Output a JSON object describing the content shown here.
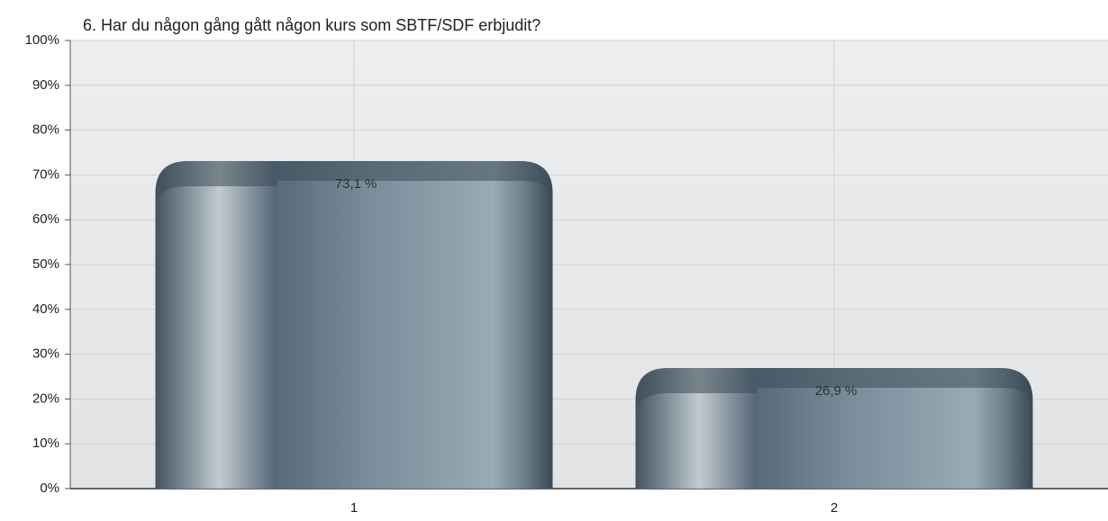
{
  "chart_data": {
    "type": "bar",
    "title": "6. Har du någon gång gått någon kurs som SBTF/SDF erbjudit?",
    "categories": [
      "1",
      "2"
    ],
    "values": [
      73.1,
      26.9
    ],
    "value_labels": [
      "73,1 %",
      "26,9 %"
    ],
    "ylim": [
      0,
      100
    ],
    "yticks": [
      {
        "value": 0,
        "label": "0%"
      },
      {
        "value": 10,
        "label": "10%"
      },
      {
        "value": 20,
        "label": "20%"
      },
      {
        "value": 30,
        "label": "30%"
      },
      {
        "value": 40,
        "label": "40%"
      },
      {
        "value": 50,
        "label": "50%"
      },
      {
        "value": 60,
        "label": "60%"
      },
      {
        "value": 70,
        "label": "70%"
      },
      {
        "value": 80,
        "label": "80%"
      },
      {
        "value": 90,
        "label": "90%"
      },
      {
        "value": 100,
        "label": "100%"
      }
    ],
    "grid": true
  }
}
